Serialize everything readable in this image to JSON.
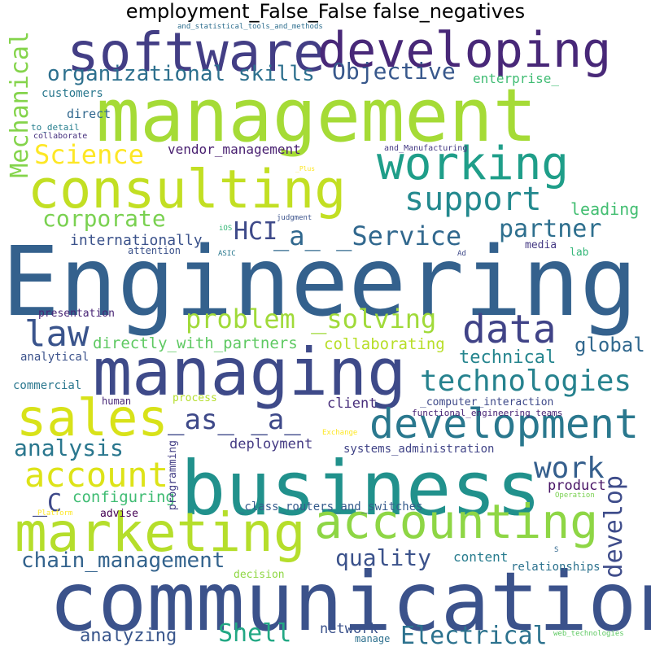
{
  "chart_data": {
    "type": "wordcloud",
    "title": "employment_False_False false_negatives",
    "words": [
      {
        "text": "Engineering",
        "color": "#34618d"
      },
      {
        "text": "management",
        "color": "#a5db36"
      },
      {
        "text": "communication",
        "color": "#3b528b"
      },
      {
        "text": "business",
        "color": "#21918c"
      },
      {
        "text": "managing",
        "color": "#3e4a89"
      },
      {
        "text": "software",
        "color": "#433e85"
      },
      {
        "text": "developing",
        "color": "#482878"
      },
      {
        "text": "consulting",
        "color": "#c2df23"
      },
      {
        "text": "marketing",
        "color": "#b5de2b"
      },
      {
        "text": "accounting",
        "color": "#8ed645"
      },
      {
        "text": "working",
        "color": "#1f9e89"
      },
      {
        "text": "sales",
        "color": "#d8e219"
      },
      {
        "text": "development",
        "color": "#2a788e"
      },
      {
        "text": "technologies",
        "color": "#26828e"
      },
      {
        "text": "data",
        "color": "#404387"
      },
      {
        "text": "law",
        "color": "#3a548c"
      },
      {
        "text": "support",
        "color": "#23898e"
      },
      {
        "text": "_a_ _Service",
        "color": "#31688e"
      },
      {
        "text": "account",
        "color": "#dde318"
      },
      {
        "text": "problem _solving",
        "color": "#a0da39"
      },
      {
        "text": "Science",
        "color": "#fde725"
      },
      {
        "text": "_as_ _a_",
        "color": "#3e4989"
      },
      {
        "text": "corporate",
        "color": "#7ad151"
      },
      {
        "text": "organizational skills",
        "color": "#2d708e"
      },
      {
        "text": "Objective",
        "color": "#38588c"
      },
      {
        "text": "HCI",
        "color": "#3e4a89"
      },
      {
        "text": "partner",
        "color": "#2e6f8e"
      },
      {
        "text": "chain_management",
        "color": "#33638d"
      },
      {
        "text": "analysis",
        "color": "#2a778e"
      },
      {
        "text": "work",
        "color": "#355f8d"
      },
      {
        "text": "develop",
        "color": "#3e4c8a"
      },
      {
        "text": "quality",
        "color": "#3b528b"
      },
      {
        "text": "Electrical",
        "color": "#2c728e"
      },
      {
        "text": "Shell",
        "color": "#22a884"
      },
      {
        "text": "Mechanical",
        "color": "#84d44b"
      },
      {
        "text": "_C",
        "color": "#3e4989"
      },
      {
        "text": "technical",
        "color": "#25858e"
      },
      {
        "text": "global",
        "color": "#31688e"
      },
      {
        "text": "directly_with_partners",
        "color": "#5ec962"
      },
      {
        "text": "collaborating",
        "color": "#b8de29"
      },
      {
        "text": "internationally",
        "color": "#3b528b"
      },
      {
        "text": "leading",
        "color": "#42be71"
      },
      {
        "text": "analyzing",
        "color": "#39568c"
      },
      {
        "text": "configuring",
        "color": "#3fbc73"
      },
      {
        "text": "product",
        "color": "#471365"
      },
      {
        "text": "deployment",
        "color": "#443a83"
      },
      {
        "text": "vendor_management",
        "color": "#481f70"
      },
      {
        "text": "enterprise_",
        "color": "#3fbc73"
      },
      {
        "text": "network",
        "color": "#3b528b"
      },
      {
        "text": "content",
        "color": "#287c8e"
      },
      {
        "text": "client",
        "color": "#472d7b"
      },
      {
        "text": "direct",
        "color": "#31688e"
      },
      {
        "text": "customers",
        "color": "#2a788e"
      },
      {
        "text": "systems_administration",
        "color": "#414487"
      },
      {
        "text": "_class_routers_and_switches",
        "color": "#365c8d"
      },
      {
        "text": "relationships",
        "color": "#2c728e"
      },
      {
        "text": "analytical",
        "color": "#3b528b"
      },
      {
        "text": "presentation",
        "color": "#482475"
      },
      {
        "text": "commercial",
        "color": "#2a778e"
      },
      {
        "text": "programming",
        "color": "#433e85"
      },
      {
        "text": "decision",
        "color": "#8fd744"
      },
      {
        "text": "advise",
        "color": "#440154"
      },
      {
        "text": "process",
        "color": "#b5de2b"
      },
      {
        "text": "_computer_interaction",
        "color": "#3e4989"
      },
      {
        "text": "functional_engineering_teams",
        "color": "#482475"
      },
      {
        "text": "human",
        "color": "#482878"
      },
      {
        "text": "media",
        "color": "#443983"
      },
      {
        "text": "lab",
        "color": "#35b779"
      },
      {
        "text": "attention",
        "color": "#3b528b"
      },
      {
        "text": "to_detail",
        "color": "#277f8e"
      },
      {
        "text": "collaborate",
        "color": "#46307e"
      },
      {
        "text": "and_statistical_tools_and_methods",
        "color": "#2e6e8e"
      },
      {
        "text": "and_Manufacturing",
        "color": "#443983"
      },
      {
        "text": "judgment",
        "color": "#3b528b"
      },
      {
        "text": "iOS",
        "color": "#37b878"
      },
      {
        "text": "ASIC",
        "color": "#2a788e"
      },
      {
        "text": "Ad",
        "color": "#3e4989"
      },
      {
        "text": "_Plus",
        "color": "#fde725"
      },
      {
        "text": "Exchange",
        "color": "#fde725"
      },
      {
        "text": "Platform",
        "color": "#fde725"
      },
      {
        "text": "Operation",
        "color": "#7ad151"
      },
      {
        "text": "manage",
        "color": "#2d708e"
      },
      {
        "text": "web_technologies",
        "color": "#5ec962"
      },
      {
        "text": "S",
        "color": "#31688e"
      }
    ]
  }
}
